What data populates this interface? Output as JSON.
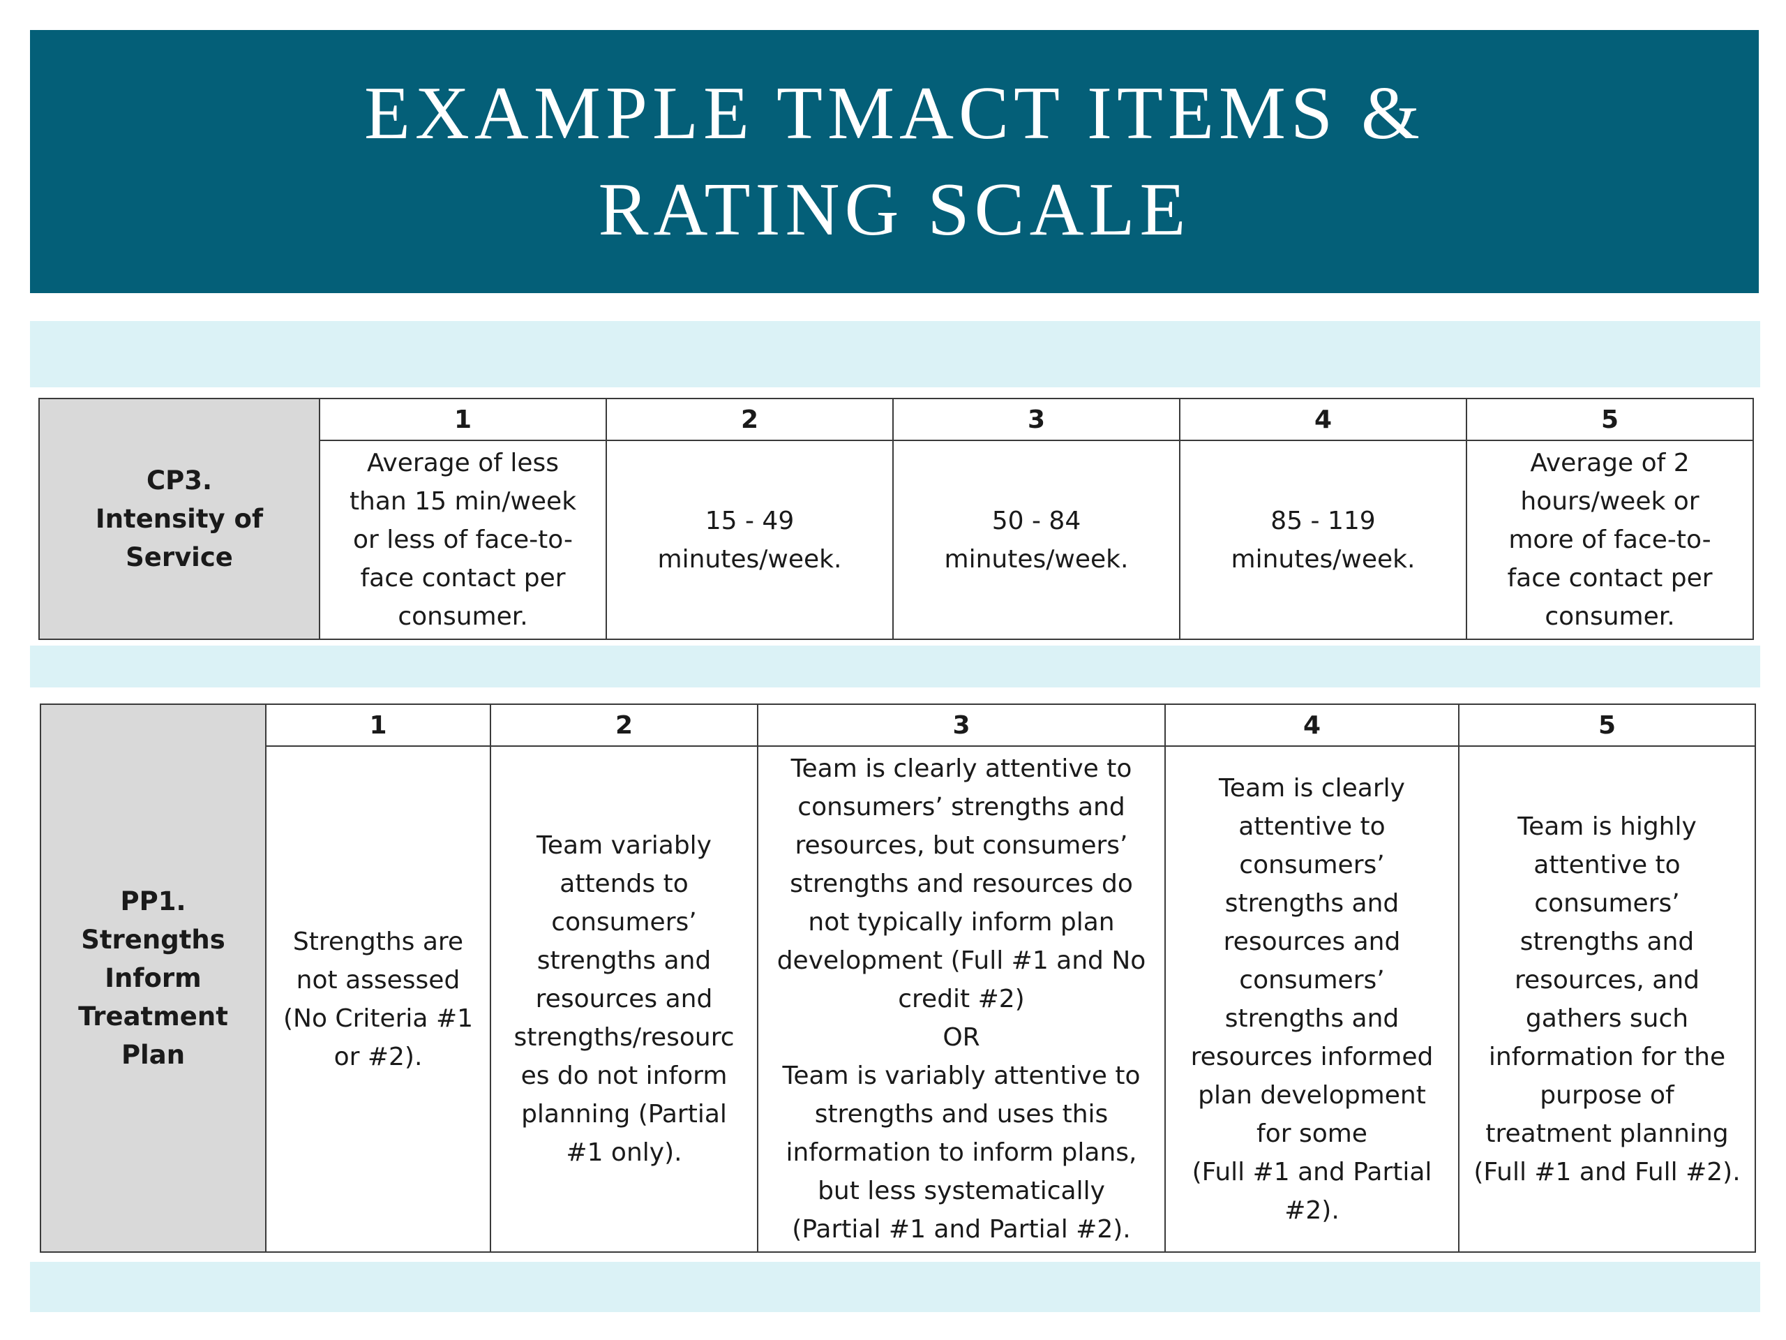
{
  "title": {
    "line1": "EXAMPLE TMACT ITEMS &",
    "line2": "RATING SCALE"
  },
  "colors": {
    "banner": "#045f78",
    "band": "#dbf2f6",
    "item_cell": "#d9d9d9"
  },
  "tables": [
    {
      "item": "CP3.\nIntensity of\nService",
      "scale": [
        "1",
        "2",
        "3",
        "4",
        "5"
      ],
      "descriptions": [
        "Average of less\nthan 15 min/week\nor less of face-to-\nface contact per\nconsumer.",
        "15 - 49\nminutes/week.",
        "50 - 84\nminutes/week.",
        "85 - 119\nminutes/week.",
        "Average of 2\nhours/week or\nmore of face-to-\nface contact per\nconsumer."
      ]
    },
    {
      "item": "PP1. Strengths\nInform\nTreatment\nPlan",
      "scale": [
        "1",
        "2",
        "3",
        "4",
        "5"
      ],
      "descriptions": [
        "Strengths are\nnot assessed\n(No Criteria #1\nor #2).",
        "Team variably\nattends to\nconsumers’\nstrengths and\nresources and\nstrengths/resourc\nes do not inform\nplanning (Partial\n#1 only).",
        "Team is clearly attentive to\nconsumers’ strengths and\nresources, but consumers’\nstrengths and resources do\nnot typically inform plan\ndevelopment (Full #1 and No\ncredit #2)\nOR\nTeam is variably attentive to\nstrengths and uses this\ninformation to inform plans,\nbut less systematically\n(Partial #1 and Partial #2).",
        "Team is clearly\nattentive to\nconsumers’\nstrengths and\nresources and\nconsumers’\nstrengths and\nresources informed\nplan development\nfor some\n(Full #1 and Partial\n#2).",
        "Team is highly\nattentive to\nconsumers’\nstrengths and\nresources, and\ngathers such\ninformation for the\npurpose of\ntreatment planning\n(Full #1 and Full #2)."
      ]
    }
  ]
}
